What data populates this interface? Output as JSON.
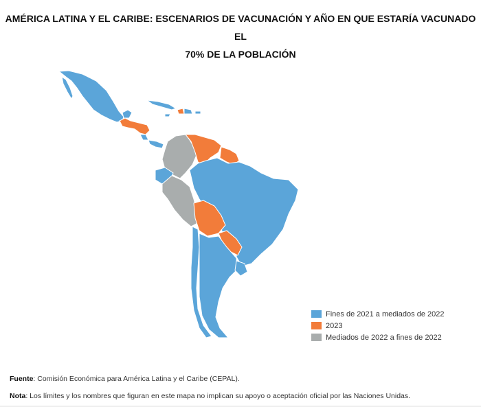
{
  "title": {
    "line1": "AMÉRICA LATINA Y EL CARIBE: ESCENARIOS DE VACUNACIÓN Y AÑO EN QUE ESTARÍA VACUNADO EL",
    "line2": "70% DE LA POBLACIÓN"
  },
  "colors": {
    "blue": "#5ba5d9",
    "orange": "#f27c3a",
    "gray": "#a9adad",
    "border": "#ffffff"
  },
  "legend": [
    {
      "label": "Fines de 2021 a mediados de 2022",
      "color": "#5ba5d9"
    },
    {
      "label": "2023",
      "color": "#f27c3a"
    },
    {
      "label": "Mediados de 2022 a fines de 2022",
      "color": "#a9adad"
    }
  ],
  "footer": {
    "source_label": "Fuente",
    "source_text": ": Comisión Económica para América Latina y el Caribe (CEPAL).",
    "note_label": "Nota",
    "note_text": ": Los límites y los nombres que figuran en este mapa no implican su apoyo o aceptación oficial por las Naciones Unidas."
  }
}
